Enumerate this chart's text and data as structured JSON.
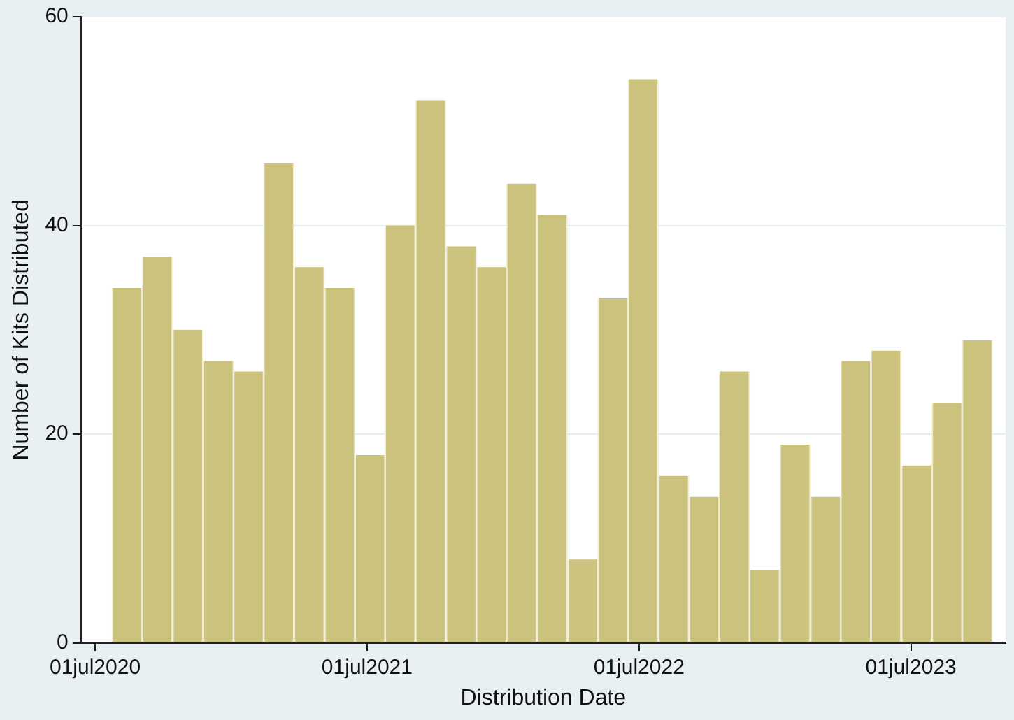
{
  "chart_data": {
    "type": "histogram",
    "xlabel": "Distribution Date",
    "ylabel": "Number of Kits Distributed",
    "bins": [
      "2020-07-24",
      "2020-09-02",
      "2020-10-13",
      "2020-11-23",
      "2021-01-03",
      "2021-02-12",
      "2021-03-25",
      "2021-05-05",
      "2021-06-15",
      "2021-07-25",
      "2021-09-04",
      "2021-10-15",
      "2021-11-25",
      "2022-01-04",
      "2022-02-14",
      "2022-03-27",
      "2022-05-07",
      "2022-06-16",
      "2022-07-27",
      "2022-09-06",
      "2022-10-17",
      "2022-11-26",
      "2023-01-06",
      "2023-02-16",
      "2023-03-29",
      "2023-05-08",
      "2023-06-18",
      "2023-07-29",
      "2023-09-08",
      "2023-10-18"
    ],
    "values": [
      34,
      37,
      30,
      27,
      26,
      46,
      36,
      34,
      18,
      40,
      52,
      38,
      36,
      44,
      41,
      8,
      33,
      54,
      16,
      14,
      26,
      7,
      19,
      14,
      27,
      28,
      17,
      23,
      29
    ],
    "color": "#cbc27e",
    "xlim": [
      "2020-06-12",
      "2023-11-05"
    ],
    "xticks": [
      {
        "value": "2020-07-01",
        "label": "01jul2020"
      },
      {
        "value": "2021-07-01",
        "label": "01jul2021"
      },
      {
        "value": "2022-07-01",
        "label": "01jul2022"
      },
      {
        "value": "2023-07-01",
        "label": "01jul2023"
      }
    ],
    "ylim": [
      0,
      60
    ],
    "yticks": [
      0,
      20,
      40,
      60
    ],
    "grid": "y"
  }
}
